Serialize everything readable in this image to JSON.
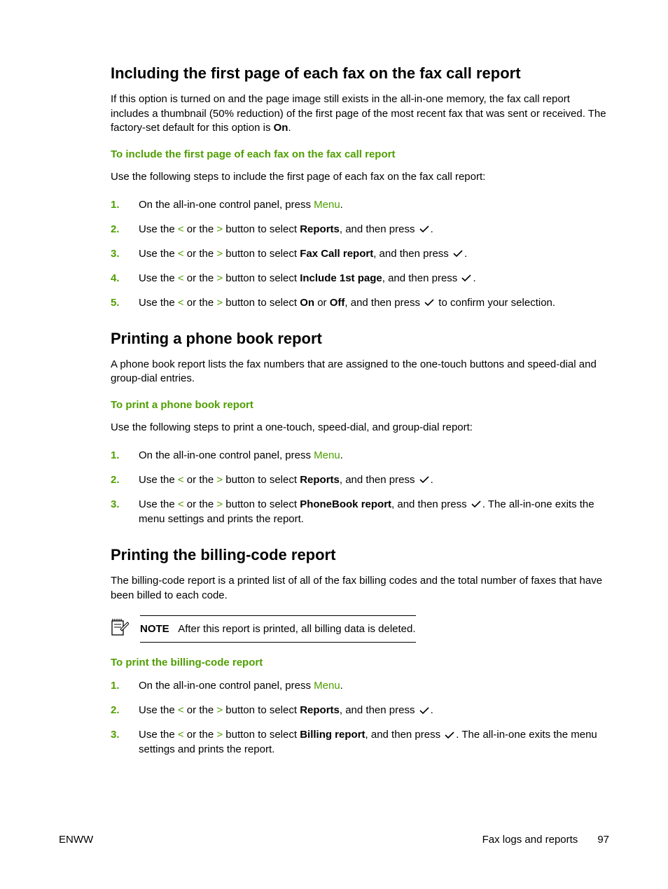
{
  "colors": {
    "text": "#000000",
    "accent_green": "#4f9e00",
    "background": "#ffffff",
    "note_border": "#000000"
  },
  "typography": {
    "body_fontsize_pt": 11,
    "heading_fontsize_pt": 17,
    "subheading_fontsize_pt": 11,
    "font_family": "Arial"
  },
  "section1": {
    "heading": "Including the first page of each fax on the fax call report",
    "intro_part1": "If this option is turned on and the page image still exists in the all-in-one memory, the fax call report includes a thumbnail (50% reduction) of the first page of the most recent fax that was sent or received. The factory-set default for this option is ",
    "intro_bold": "On",
    "intro_part2": ".",
    "subheading": "To include the first page of each fax on the fax call report",
    "lead": "Use the following steps to include the first page of each fax on the fax call report:",
    "steps": [
      {
        "n": "1.",
        "a": "On the all-in-one control panel, press ",
        "menu": "Menu",
        "b": "."
      },
      {
        "n": "2.",
        "a": "Use the ",
        "lt": "<",
        "mid": " or the ",
        "gt": ">",
        "b1": " button to select ",
        "bold": "Reports",
        "b2": ", and then press ",
        "b3": "."
      },
      {
        "n": "3.",
        "a": "Use the ",
        "lt": "<",
        "mid": " or the ",
        "gt": ">",
        "b1": " button to select ",
        "bold": "Fax Call report",
        "b2": ", and then press ",
        "b3": "."
      },
      {
        "n": "4.",
        "a": "Use the ",
        "lt": "<",
        "mid": " or the ",
        "gt": ">",
        "b1": " button to select ",
        "bold": "Include 1st page",
        "b2": ", and then press ",
        "b3": "."
      },
      {
        "n": "5.",
        "a": "Use the ",
        "lt": "<",
        "mid": " or the ",
        "gt": ">",
        "b1": " button to select ",
        "bold": "On",
        "bold2_sep": " or ",
        "bold2": "Off",
        "b2": ", and then press ",
        "b3": " to confirm your selection."
      }
    ]
  },
  "section2": {
    "heading": "Printing a phone book report",
    "intro": "A phone book report lists the fax numbers that are assigned to the one-touch buttons and speed-dial and group-dial entries.",
    "subheading": "To print a phone book report",
    "lead": "Use the following steps to print a one-touch, speed-dial, and group-dial report:",
    "steps": [
      {
        "n": "1.",
        "a": "On the all-in-one control panel, press ",
        "menu": "Menu",
        "b": "."
      },
      {
        "n": "2.",
        "a": "Use the ",
        "lt": "<",
        "mid": " or the ",
        "gt": ">",
        "b1": " button to select ",
        "bold": "Reports",
        "b2": ", and then press ",
        "b3": "."
      },
      {
        "n": "3.",
        "a": "Use the ",
        "lt": "<",
        "mid": " or the ",
        "gt": ">",
        "b1": " button to select ",
        "bold": "PhoneBook report",
        "b2": ", and then press ",
        "b3": ". The all-in-one exits the menu settings and prints the report."
      }
    ]
  },
  "section3": {
    "heading": "Printing the billing-code report",
    "intro": "The billing-code report is a printed list of all of the fax billing codes and the total number of faxes that have been billed to each code.",
    "note_label": "NOTE",
    "note_text": "After this report is printed, all billing data is deleted.",
    "subheading": "To print the billing-code report",
    "steps": [
      {
        "n": "1.",
        "a": "On the all-in-one control panel, press ",
        "menu": "Menu",
        "b": "."
      },
      {
        "n": "2.",
        "a": "Use the ",
        "lt": "<",
        "mid": " or the ",
        "gt": ">",
        "b1": " button to select ",
        "bold": "Reports",
        "b2": ", and then press ",
        "b3": "."
      },
      {
        "n": "3.",
        "a": "Use the ",
        "lt": "<",
        "mid": " or the ",
        "gt": ">",
        "b1": " button to select ",
        "bold": "Billing report",
        "b2": ", and then press ",
        "b3": ". The all-in-one exits the menu settings and prints the report."
      }
    ]
  },
  "footer": {
    "left": "ENWW",
    "right_label": "Fax logs and reports",
    "page_num": "97"
  }
}
